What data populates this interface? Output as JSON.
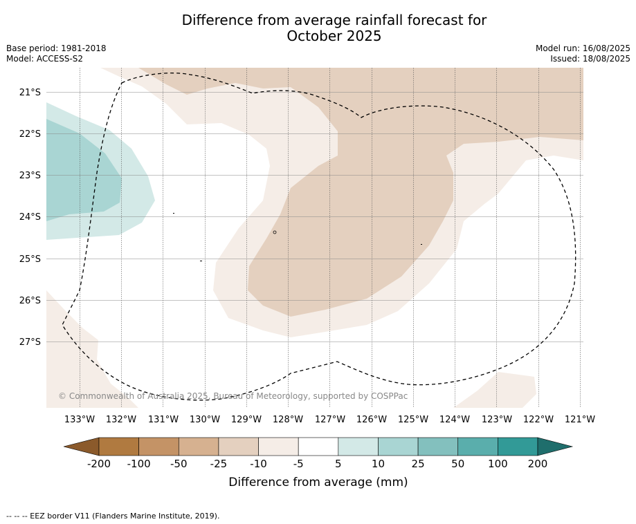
{
  "title_line1": "Difference from average rainfall forecast for",
  "title_line2": "October 2025",
  "meta_left": [
    "Base period: 1981-2018",
    "Model: ACCESS-S2"
  ],
  "meta_right": [
    "Model run: 16/08/2025",
    "Issued: 18/08/2025"
  ],
  "map": {
    "lon_labels": [
      "133°W",
      "132°W",
      "131°W",
      "130°W",
      "129°W",
      "128°W",
      "127°W",
      "126°W",
      "125°W",
      "124°W",
      "123°W",
      "122°W",
      "121°W"
    ],
    "lat_labels": [
      "21°S",
      "22°S",
      "23°S",
      "24°S",
      "25°S",
      "26°S",
      "27°S"
    ],
    "copyright": "© Commonwealth of Australia 2025, Bureau of Meteorology, supported by COSPPac"
  },
  "colorbar": {
    "ticks": [
      "-200",
      "-100",
      "-50",
      "-25",
      "-10",
      "-5",
      "5",
      "10",
      "25",
      "50",
      "100",
      "200"
    ],
    "label": "Difference from average (mm)",
    "colors": [
      "#8b5a2b",
      "#b07a40",
      "#c49366",
      "#d6b190",
      "#e4d0bf",
      "#f5ede7",
      "#ffffff",
      "#d3e9e7",
      "#a9d5d3",
      "#83c0be",
      "#5aaeac",
      "#329a97",
      "#1f6e6c"
    ]
  },
  "footnote": "--  --  -- EEZ border V11 (Flanders Marine Institute, 2019)."
}
